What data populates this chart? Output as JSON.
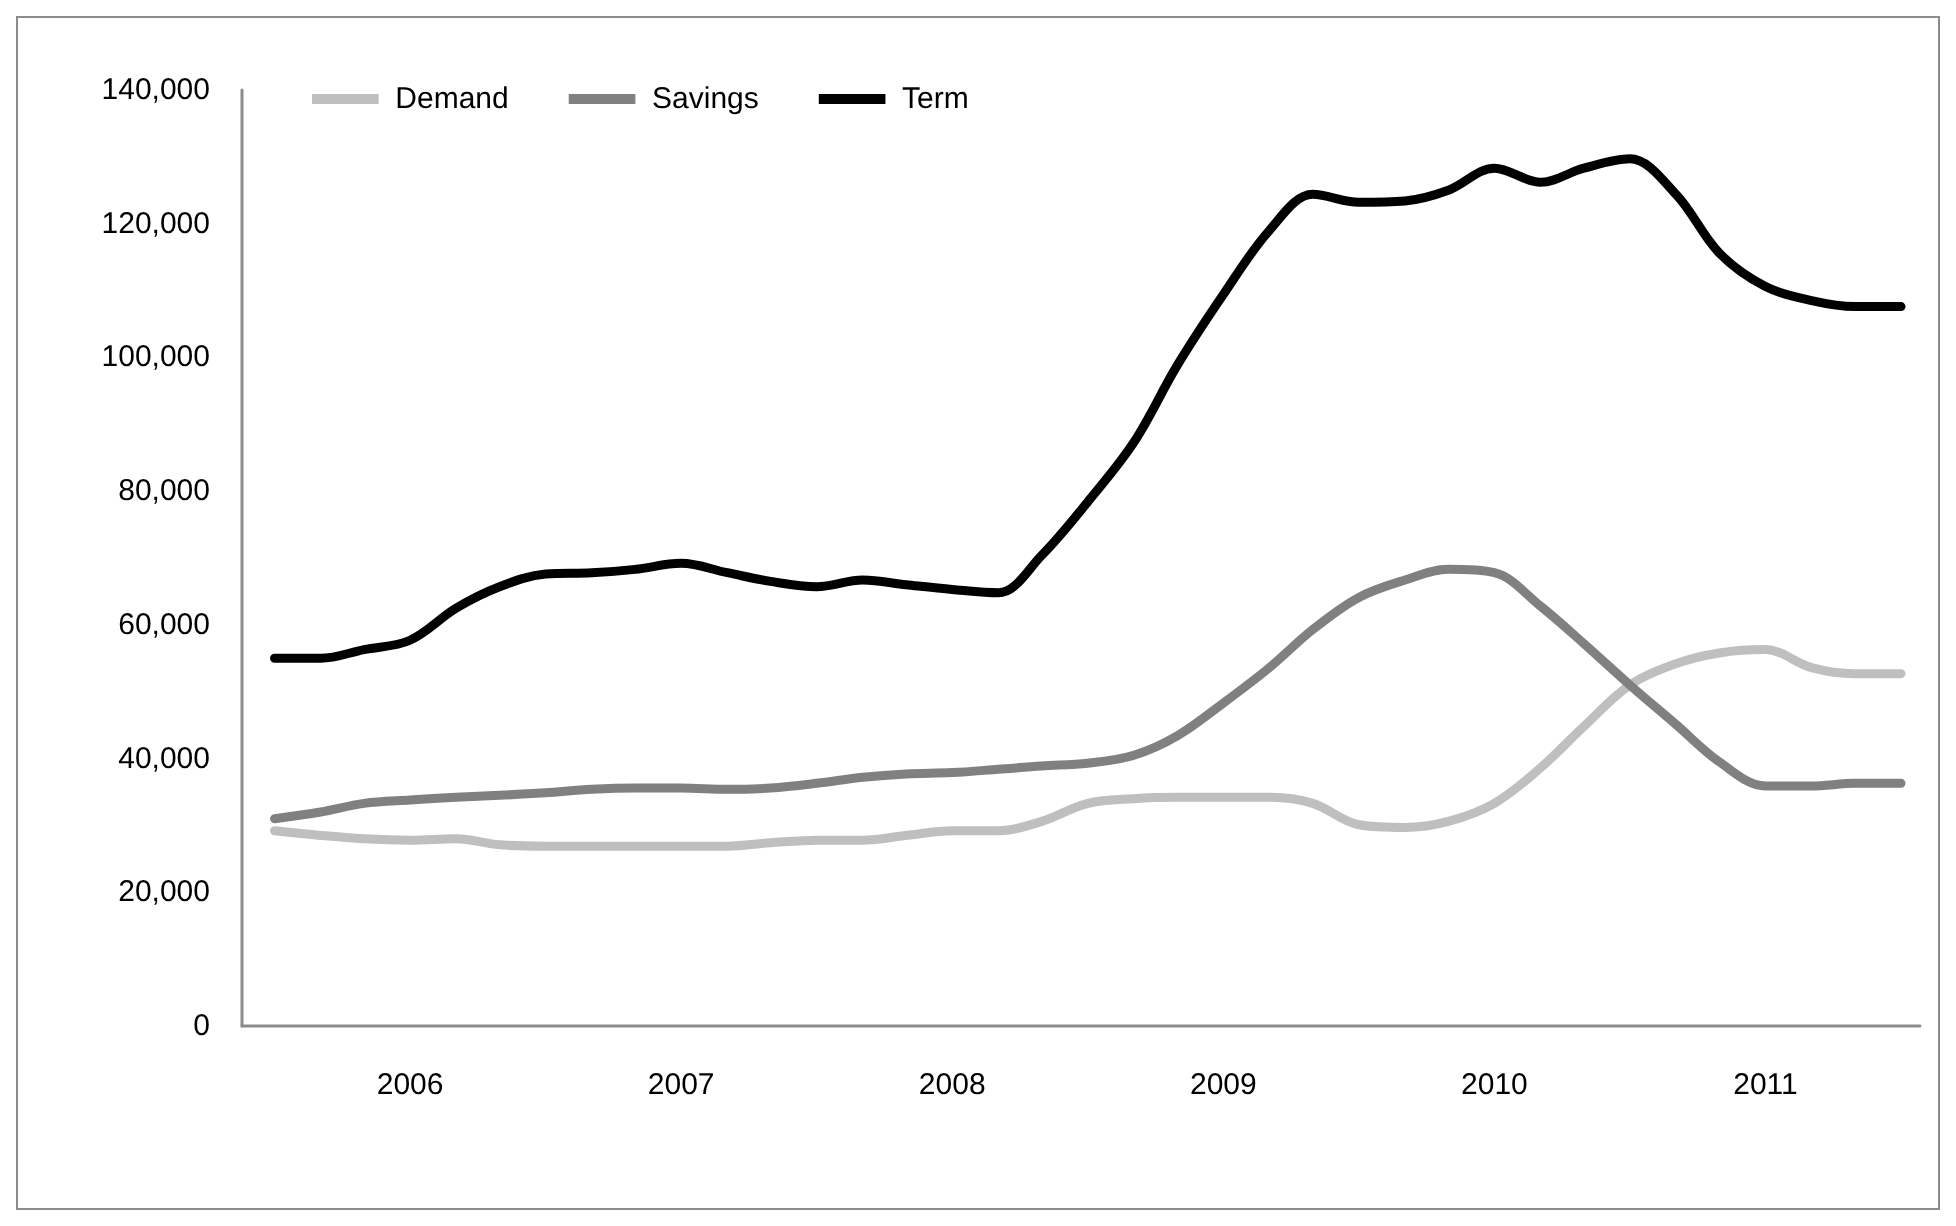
{
  "chart_data": {
    "type": "line",
    "x": [
      2006,
      2006.17,
      2006.33,
      2006.5,
      2006.67,
      2006.83,
      2007,
      2007.17,
      2007.33,
      2007.5,
      2007.67,
      2007.83,
      2008,
      2008.17,
      2008.33,
      2008.5,
      2008.67,
      2008.83,
      2009,
      2009.17,
      2009.33,
      2009.5,
      2009.67,
      2009.83,
      2010,
      2010.17,
      2010.33,
      2010.5,
      2010.67,
      2010.83,
      2011,
      2011.17,
      2011.33,
      2011.5,
      2011.67,
      2011.83,
      2012
    ],
    "series": [
      {
        "name": "Demand",
        "color": "#bfbfbf",
        "values": [
          29200,
          28500,
          28000,
          27800,
          28000,
          27100,
          26900,
          26900,
          26900,
          26900,
          26900,
          27400,
          27800,
          27800,
          28500,
          29200,
          29200,
          30600,
          33300,
          34000,
          34200,
          34200,
          34200,
          33300,
          30100,
          29700,
          30600,
          33300,
          38600,
          44800,
          51000,
          54200,
          55800,
          56300,
          53600,
          52700,
          52700
        ]
      },
      {
        "name": "Savings",
        "color": "#808080",
        "values": [
          31000,
          32000,
          33300,
          33800,
          34200,
          34500,
          34900,
          35400,
          35600,
          35600,
          35400,
          35600,
          36300,
          37200,
          37700,
          37900,
          38400,
          38900,
          39300,
          40500,
          43400,
          48300,
          53600,
          59300,
          64100,
          66700,
          68300,
          67800,
          62800,
          57200,
          51000,
          45100,
          39500,
          35900,
          35900,
          36300,
          36300
        ]
      },
      {
        "name": "Term",
        "color": "#000000",
        "values": [
          55000,
          55000,
          56300,
          57700,
          62500,
          65700,
          67600,
          67800,
          68300,
          69200,
          67800,
          66500,
          65700,
          66700,
          66000,
          65300,
          64800,
          70400,
          78400,
          87300,
          98800,
          109400,
          119000,
          124400,
          123200,
          123400,
          125000,
          128300,
          126200,
          128300,
          129700,
          124400,
          115600,
          110600,
          108500,
          107600,
          107600
        ]
      }
    ],
    "xlim": [
      2005.88,
      2012.07
    ],
    "xticks": [
      {
        "value": 2006.5,
        "label": "2006"
      },
      {
        "value": 2007.5,
        "label": "2007"
      },
      {
        "value": 2008.5,
        "label": "2008"
      },
      {
        "value": 2009.5,
        "label": "2009"
      },
      {
        "value": 2010.5,
        "label": "2010"
      },
      {
        "value": 2011.5,
        "label": "2011"
      }
    ],
    "ylim": [
      0,
      140000
    ],
    "yticks": [
      0,
      {
        "value": 20000,
        "label": "20,000"
      },
      {
        "value": 40000,
        "label": "40,000"
      },
      {
        "value": 60000,
        "label": "60,000"
      },
      {
        "value": 80000,
        "label": "80,000"
      },
      {
        "value": 100000,
        "label": "100,000"
      },
      {
        "value": 120000,
        "label": "120,000"
      },
      {
        "value": 140000,
        "label": "140,000"
      }
    ],
    "grid": false,
    "legend": "top left",
    "marker": "none",
    "line_style": "solid"
  }
}
